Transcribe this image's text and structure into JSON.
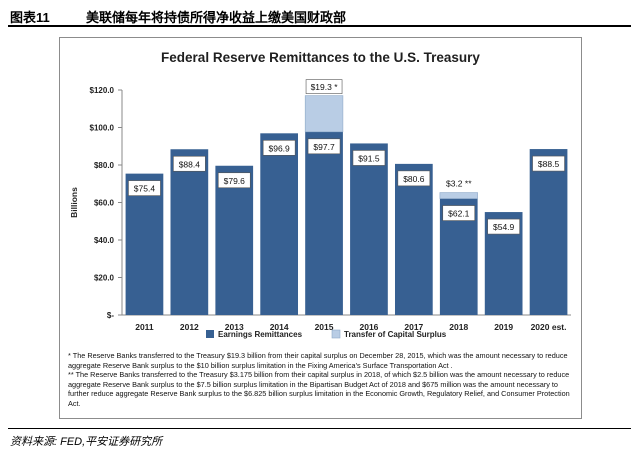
{
  "header": {
    "figure_label": "图表11",
    "title": "美联储每年将持债所得净收益上缴美国财政部"
  },
  "chart_data": {
    "type": "bar",
    "title": "Federal Reserve Remittances to the U.S. Treasury",
    "ylabel": "Billions",
    "xlabel": "",
    "ylim": [
      0,
      120
    ],
    "yticks": [
      {
        "value": 0,
        "label": "$-"
      },
      {
        "value": 20,
        "label": "$20.0"
      },
      {
        "value": 40,
        "label": "$40.0"
      },
      {
        "value": 60,
        "label": "$60.0"
      },
      {
        "value": 80,
        "label": "$80.0"
      },
      {
        "value": 100,
        "label": "$100.0"
      },
      {
        "value": 120,
        "label": "$120.0"
      }
    ],
    "categories": [
      "2011",
      "2012",
      "2013",
      "2014",
      "2015",
      "2016",
      "2017",
      "2018",
      "2019",
      "2020 est."
    ],
    "series": [
      {
        "name": "Earnings Remittances",
        "color": "#376092",
        "values": [
          75.4,
          88.4,
          79.6,
          96.9,
          97.7,
          91.5,
          80.6,
          62.1,
          54.9,
          88.5
        ],
        "labels": [
          "$75.4",
          "$88.4",
          "$79.6",
          "$96.9",
          "$97.7",
          "$91.5",
          "$80.6",
          "$62.1",
          "$54.9",
          "$88.5"
        ]
      },
      {
        "name": "Transfer of Capital Surplus",
        "color": "#b9cde5",
        "values": [
          0,
          0,
          0,
          0,
          19.3,
          0,
          0,
          3.2,
          0,
          0
        ],
        "labels": [
          "",
          "",
          "",
          "",
          "$19.3 *",
          "",
          "",
          "$3.2 **",
          "",
          ""
        ]
      }
    ],
    "legend_position": "bottom",
    "grid": false
  },
  "notes": [
    "* The Reserve Banks transferred to the Treasury $19.3 billion from their capital surplus on December 28, 2015, which was the amount necessary to reduce aggregate Reserve Bank surplus to the $10 billion surplus limitation in the Fixing America's Surface Transportation Act .",
    "** The Reserve Banks transferred to the Treasury $3.175 billion from their capital surplus in 2018, of which $2.5 billion was the amount necessary to reduce aggregate Reserve Bank surplus to the $7.5 billion surplus limitation in the Bipartisan Budget Act of 2018 and $675 million was the amount necessary to further reduce aggregate Reserve Bank surplus to the $6.825 billion surplus limitation in the Economic Growth, Regulatory Relief, and Consumer Protection Act."
  ],
  "source": "资料来源: FED,平安证券研究所"
}
